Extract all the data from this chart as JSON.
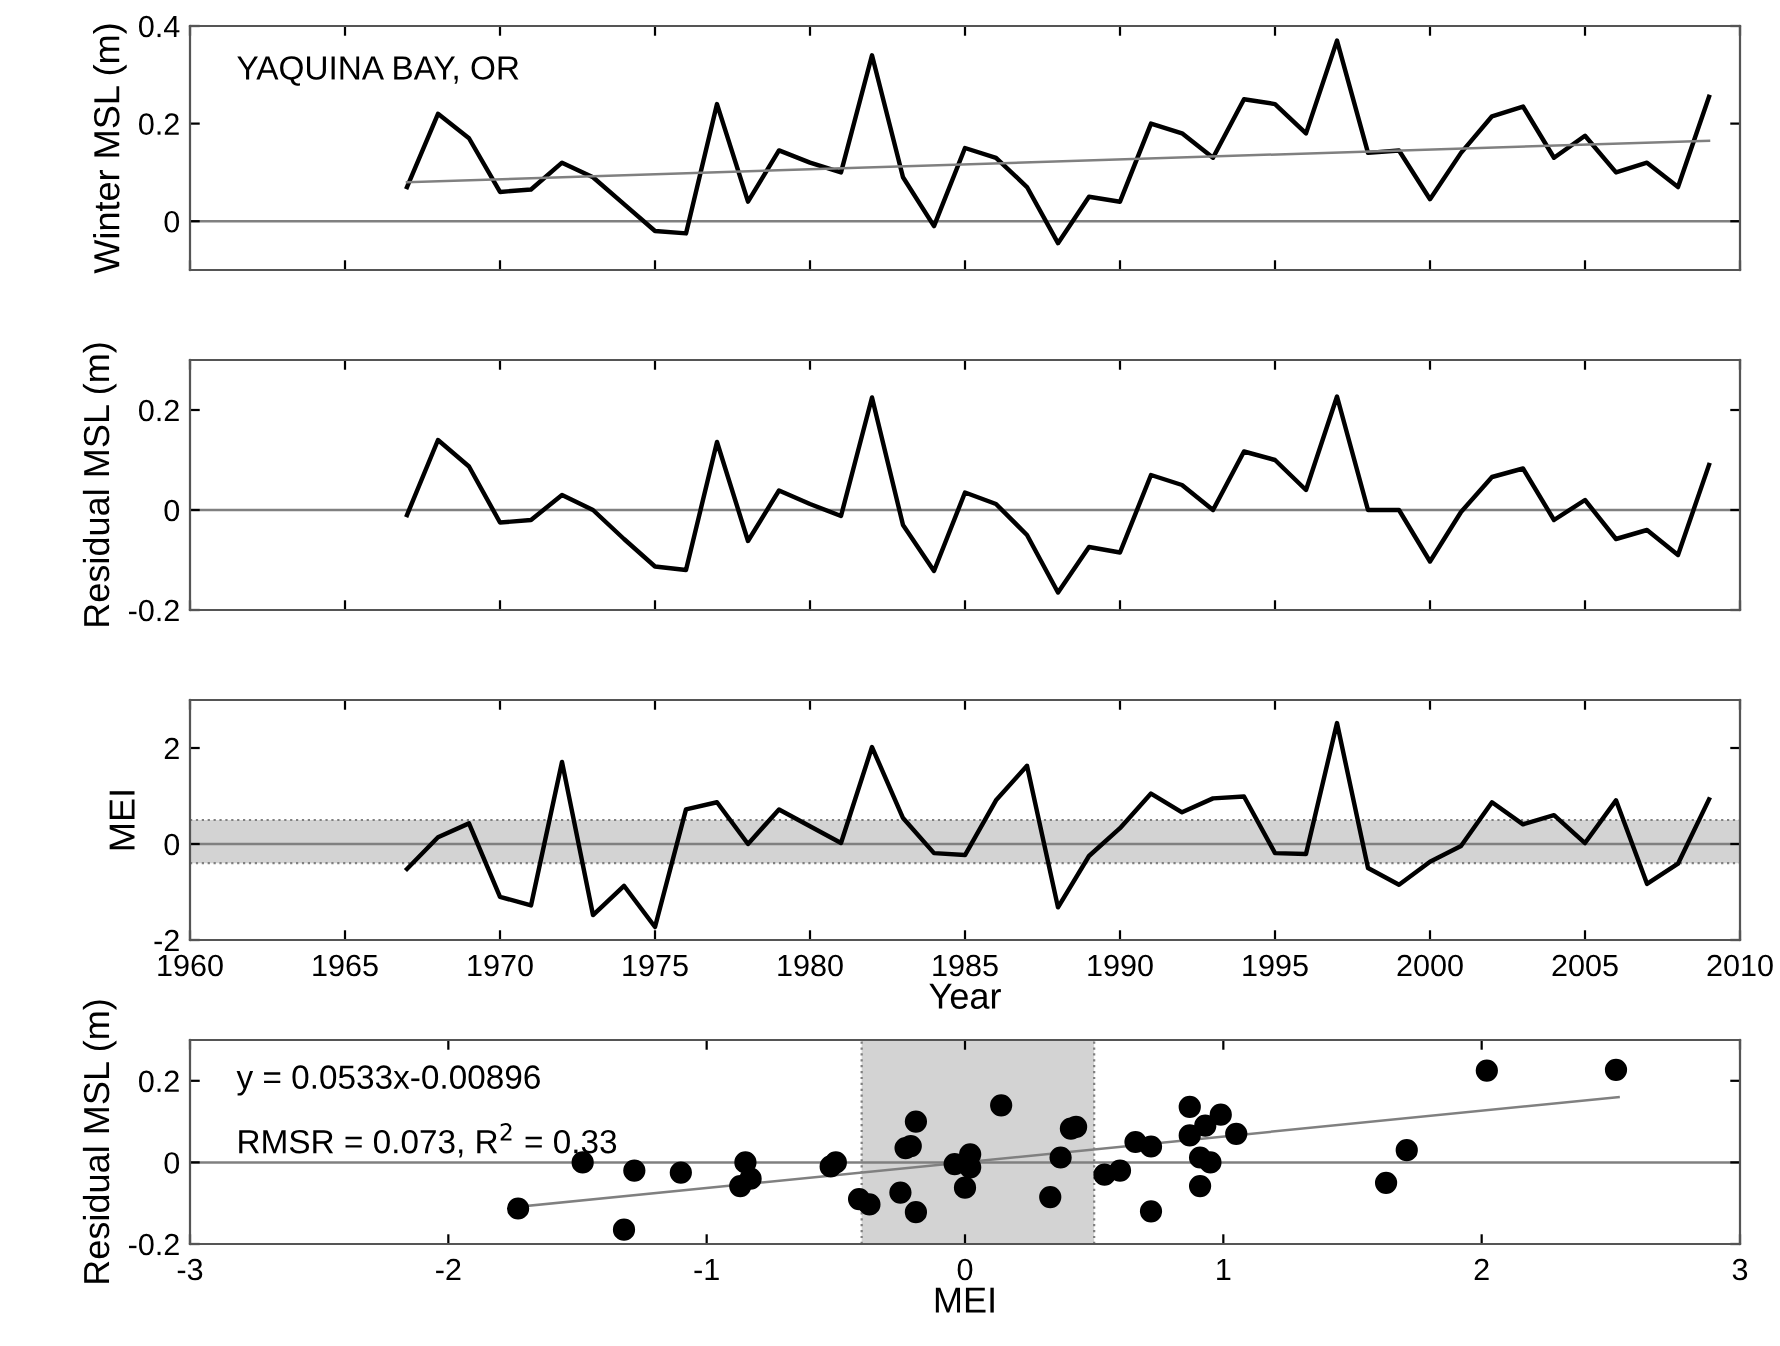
{
  "chart_data": [
    {
      "type": "line",
      "ylabel": "Winter MSL (m)",
      "annotations": [
        "YAQUINA BAY, OR"
      ],
      "xlim": [
        1960,
        2010
      ],
      "xticks": [
        1960,
        1965,
        1970,
        1975,
        1980,
        1985,
        1990,
        1995,
        2000,
        2005,
        2010
      ],
      "ylim": [
        -0.1,
        0.4
      ],
      "yticks": [
        0,
        0.2,
        0.4
      ],
      "tick_labels": "y",
      "grid": false,
      "legend": false,
      "x": [
        1967,
        1968,
        1969,
        1970,
        1971,
        1972,
        1973,
        1974,
        1975,
        1976,
        1977,
        1978,
        1979,
        1980,
        1981,
        1982,
        1983,
        1984,
        1985,
        1986,
        1987,
        1988,
        1989,
        1990,
        1991,
        1992,
        1993,
        1994,
        1995,
        1996,
        1997,
        1998,
        1999,
        2000,
        2001,
        2002,
        2003,
        2004,
        2005,
        2006,
        2007,
        2008,
        2009
      ],
      "ref_lines": [
        {
          "axis": "y",
          "value": 0,
          "color": "#808080"
        }
      ],
      "series": [
        {
          "color": "#000000",
          "values": [
            0.07,
            0.22,
            0.17,
            0.06,
            0.065,
            0.12,
            0.09,
            0.035,
            -0.02,
            -0.025,
            0.24,
            0.04,
            0.145,
            0.12,
            0.1,
            0.34,
            0.09,
            -0.01,
            0.15,
            0.13,
            0.07,
            -0.045,
            0.05,
            0.04,
            0.2,
            0.18,
            0.13,
            0.25,
            0.24,
            0.18,
            0.37,
            0.14,
            0.145,
            0.045,
            0.14,
            0.215,
            0.235,
            0.13,
            0.175,
            0.1,
            0.12,
            0.07,
            0.255
          ]
        },
        {
          "type": "line",
          "color": "#808080",
          "x": [
            1967,
            2009
          ],
          "values": [
            0.08,
            0.165
          ]
        }
      ]
    },
    {
      "type": "line",
      "ylabel": "Residual MSL (m)",
      "xlim": [
        1960,
        2010
      ],
      "xticks": [
        1960,
        1965,
        1970,
        1975,
        1980,
        1985,
        1990,
        1995,
        2000,
        2005,
        2010
      ],
      "ylim": [
        -0.2,
        0.3
      ],
      "yticks": [
        -0.2,
        0,
        0.2
      ],
      "tick_labels": "y",
      "grid": false,
      "legend": false,
      "x": [
        1967,
        1968,
        1969,
        1970,
        1971,
        1972,
        1973,
        1974,
        1975,
        1976,
        1977,
        1978,
        1979,
        1980,
        1981,
        1982,
        1983,
        1984,
        1985,
        1986,
        1987,
        1988,
        1989,
        1990,
        1991,
        1992,
        1993,
        1994,
        1995,
        1996,
        1997,
        1998,
        1999,
        2000,
        2001,
        2002,
        2003,
        2004,
        2005,
        2006,
        2007,
        2008,
        2009
      ],
      "ref_lines": [
        {
          "axis": "y",
          "value": 0,
          "color": "#808080"
        }
      ],
      "series": [
        {
          "color": "#000000",
          "values": [
            -0.01,
            0.14,
            0.087,
            -0.025,
            -0.02,
            0.03,
            0,
            -0.058,
            -0.113,
            -0.12,
            0.136,
            -0.062,
            0.039,
            0.012,
            -0.012,
            0.225,
            -0.03,
            -0.122,
            0.035,
            0.012,
            -0.05,
            -0.165,
            -0.074,
            -0.085,
            0.07,
            0.05,
            0,
            0.117,
            0.1,
            0.04,
            0.227,
            0,
            0,
            -0.103,
            -0.004,
            0.066,
            0.083,
            -0.02,
            0.02,
            -0.058,
            -0.04,
            -0.09,
            0.09
          ]
        }
      ]
    },
    {
      "type": "line",
      "ylabel": "MEI",
      "xlabel": "Year",
      "xlim": [
        1960,
        2010
      ],
      "xticks": [
        1960,
        1965,
        1970,
        1975,
        1980,
        1985,
        1990,
        1995,
        2000,
        2005,
        2010
      ],
      "ylim": [
        -2,
        3
      ],
      "yticks": [
        -2,
        0,
        2
      ],
      "grid": false,
      "legend": false,
      "x": [
        1967,
        1968,
        1969,
        1970,
        1971,
        1972,
        1973,
        1974,
        1975,
        1976,
        1977,
        1978,
        1979,
        1980,
        1981,
        1982,
        1983,
        1984,
        1985,
        1986,
        1987,
        1988,
        1989,
        1990,
        1991,
        1992,
        1993,
        1994,
        1995,
        1996,
        1997,
        1998,
        1999,
        2000,
        2001,
        2002,
        2003,
        2004,
        2005,
        2006,
        2007,
        2008,
        2009
      ],
      "ref_lines": [
        {
          "axis": "y",
          "value": 0,
          "color": "#808080"
        },
        {
          "axis": "y",
          "value": -0.4,
          "color": "#808080",
          "line_style": "dotted"
        },
        {
          "axis": "y",
          "value": 0.5,
          "color": "#808080",
          "line_style": "dotted"
        }
      ],
      "bands": [
        {
          "axis": "y",
          "from": -0.4,
          "to": 0.5,
          "color": "#d3d3d3"
        }
      ],
      "series": [
        {
          "color": "#000000",
          "values": [
            -0.52,
            0.14,
            0.43,
            -1.1,
            -1.28,
            1.71,
            -1.48,
            -0.87,
            -1.73,
            0.72,
            0.87,
            0,
            0.72,
            0.37,
            0.02,
            2.02,
            0.54,
            -0.19,
            -0.23,
            0.91,
            1.63,
            -1.32,
            -0.25,
            0.33,
            1.05,
            0.66,
            0.95,
            0.99,
            -0.19,
            -0.21,
            2.52,
            -0.5,
            -0.85,
            -0.37,
            -0.04,
            0.87,
            0.41,
            0.6,
            0.02,
            0.91,
            -0.83,
            -0.41,
            0.93
          ]
        }
      ]
    },
    {
      "type": "scatter",
      "ylabel": "Residual MSL (m)",
      "xlabel": "MEI",
      "annotations": [
        "y = 0.0533x-0.00896",
        "RMSR = 0.073, R$^{2}$ = 0.33"
      ],
      "xlim": [
        -3,
        3
      ],
      "xticks": [
        -3,
        -2,
        -1,
        0,
        1,
        2,
        3
      ],
      "ylim": [
        -0.2,
        0.3
      ],
      "yticks": [
        -0.2,
        0,
        0.2
      ],
      "grid": false,
      "legend": false,
      "ref_lines": [
        {
          "axis": "y",
          "value": 0,
          "color": "#808080"
        },
        {
          "axis": "x",
          "value": -0.4,
          "color": "#808080",
          "line_style": "dotted"
        },
        {
          "axis": "x",
          "value": 0.5,
          "color": "#808080",
          "line_style": "dotted"
        }
      ],
      "bands": [
        {
          "axis": "x",
          "from": -0.4,
          "to": 0.5,
          "color": "#d3d3d3"
        }
      ],
      "series": [
        {
          "color": "#000000",
          "marker": "circle",
          "x": [
            -0.52,
            0.14,
            0.43,
            -1.1,
            -1.28,
            1.71,
            -1.48,
            -0.87,
            -1.73,
            0.72,
            0.87,
            0,
            0.72,
            0.37,
            0.02,
            2.02,
            0.54,
            -0.19,
            -0.23,
            0.91,
            1.63,
            -1.32,
            -0.25,
            0.33,
            1.05,
            0.66,
            0.95,
            0.99,
            -0.19,
            -0.21,
            2.52,
            -0.5,
            -0.85,
            -0.37,
            -0.04,
            0.87,
            0.41,
            0.6,
            0.02,
            0.91,
            -0.83,
            -0.41,
            0.93
          ],
          "values": [
            -0.01,
            0.14,
            0.087,
            -0.025,
            -0.02,
            0.03,
            0,
            -0.058,
            -0.113,
            -0.12,
            0.136,
            -0.062,
            0.039,
            0.012,
            -0.012,
            0.225,
            -0.03,
            -0.122,
            0.035,
            0.012,
            -0.05,
            -0.165,
            -0.074,
            -0.085,
            0.07,
            0.05,
            0,
            0.117,
            0.1,
            0.04,
            0.227,
            0,
            0,
            -0.103,
            -0.004,
            0.066,
            0.083,
            -0.02,
            0.02,
            -0.058,
            -0.04,
            -0.09,
            0.09
          ]
        },
        {
          "type": "line",
          "marker": "none",
          "color": "#808080",
          "x": [
            -1.75,
            2.53
          ],
          "values": [
            -0.11,
            0.16
          ]
        }
      ]
    }
  ]
}
